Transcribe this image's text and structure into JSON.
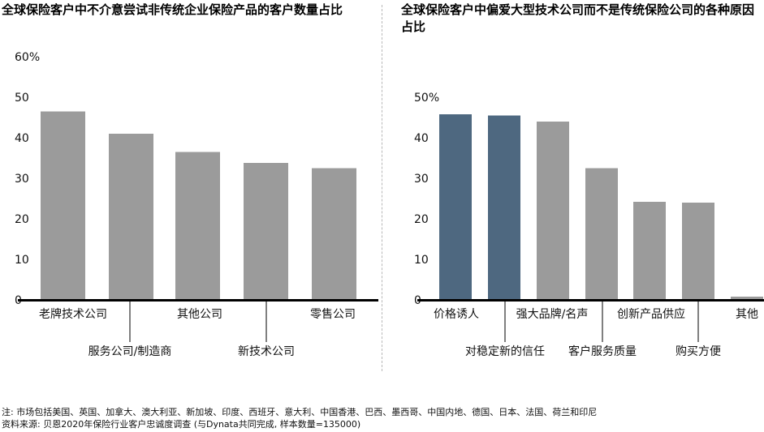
{
  "chart_data": [
    {
      "type": "bar",
      "title": "全球保险客户中不介意尝试非传统企业保险产品的客户数量占比",
      "categories": [
        "老牌技术公司",
        "服务公司/制造商",
        "其他公司",
        "新技术公司",
        "零售公司"
      ],
      "values": [
        46.5,
        41,
        36.5,
        33.8,
        32.5
      ],
      "yticks": [
        "0",
        "10",
        "20",
        "30",
        "40",
        "50",
        "60%"
      ],
      "ylim": [
        0,
        60
      ],
      "grid": false,
      "bar_color": "#9b9b9b"
    },
    {
      "type": "bar",
      "title": "全球保险客户中偏爱大型技术公司而不是传统保险公司的各种原因占比",
      "categories": [
        "价格诱人",
        "对稳定新的信任",
        "强大品牌/名声",
        "客户服务质量",
        "创新产品供应",
        "购买方便",
        "其他"
      ],
      "values": [
        45.8,
        45.5,
        44,
        32.5,
        24.2,
        24,
        0.8
      ],
      "highlight": [
        0,
        1
      ],
      "yticks": [
        "0",
        "10",
        "20",
        "30",
        "40",
        "50%"
      ],
      "ylim": [
        0,
        50
      ],
      "grid": false,
      "bar_color": "#9b9b9b",
      "highlight_color": "#4e6880"
    }
  ],
  "footer": {
    "note": "注: 市场包括美国、英国、加拿大、澳大利亚、新加坡、印度、西班牙、意大利、中国香港、巴西、墨西哥、中国内地、德国、日本、法国、荷兰和印尼",
    "source": "资料来源: 贝恩2020年保险行业客户忠诚度调查 (与Dynata共同完成, 样本数量=135000)"
  }
}
